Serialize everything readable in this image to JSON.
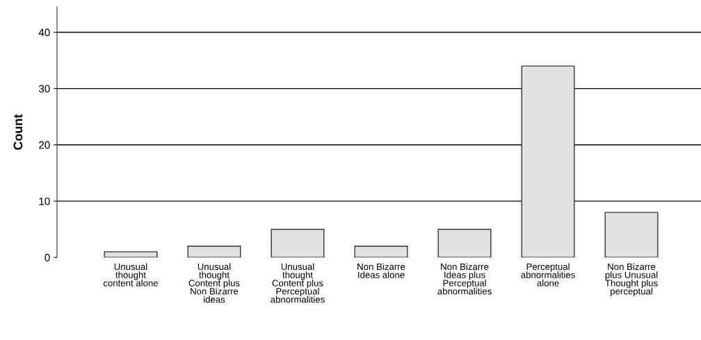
{
  "chart_data": {
    "type": "bar",
    "ylabel": "Count",
    "categories": [
      "Unusual\nthought\ncontent alone",
      "Unusual\nthought\nContent plus\nNon Bizarre\nideas",
      "Unusual\nthought\nContent plus\nPerceptual\nabnormalities",
      "Non Bizarre\nIdeas alone",
      "Non Bizarre\nIdeas plus\nPerceptual\nabnormalities",
      "Perceptual\nabnormalities\nalone",
      "Non Bizarre\nplus Unusual\nThought plus\nperceptual"
    ],
    "values": [
      1,
      2,
      5,
      2,
      5,
      34,
      8
    ],
    "color": "#e0e0e0",
    "ylim": [
      0,
      44.5
    ],
    "yticks": [
      0,
      10,
      20,
      30,
      40
    ],
    "grid": "y",
    "legend": false
  }
}
